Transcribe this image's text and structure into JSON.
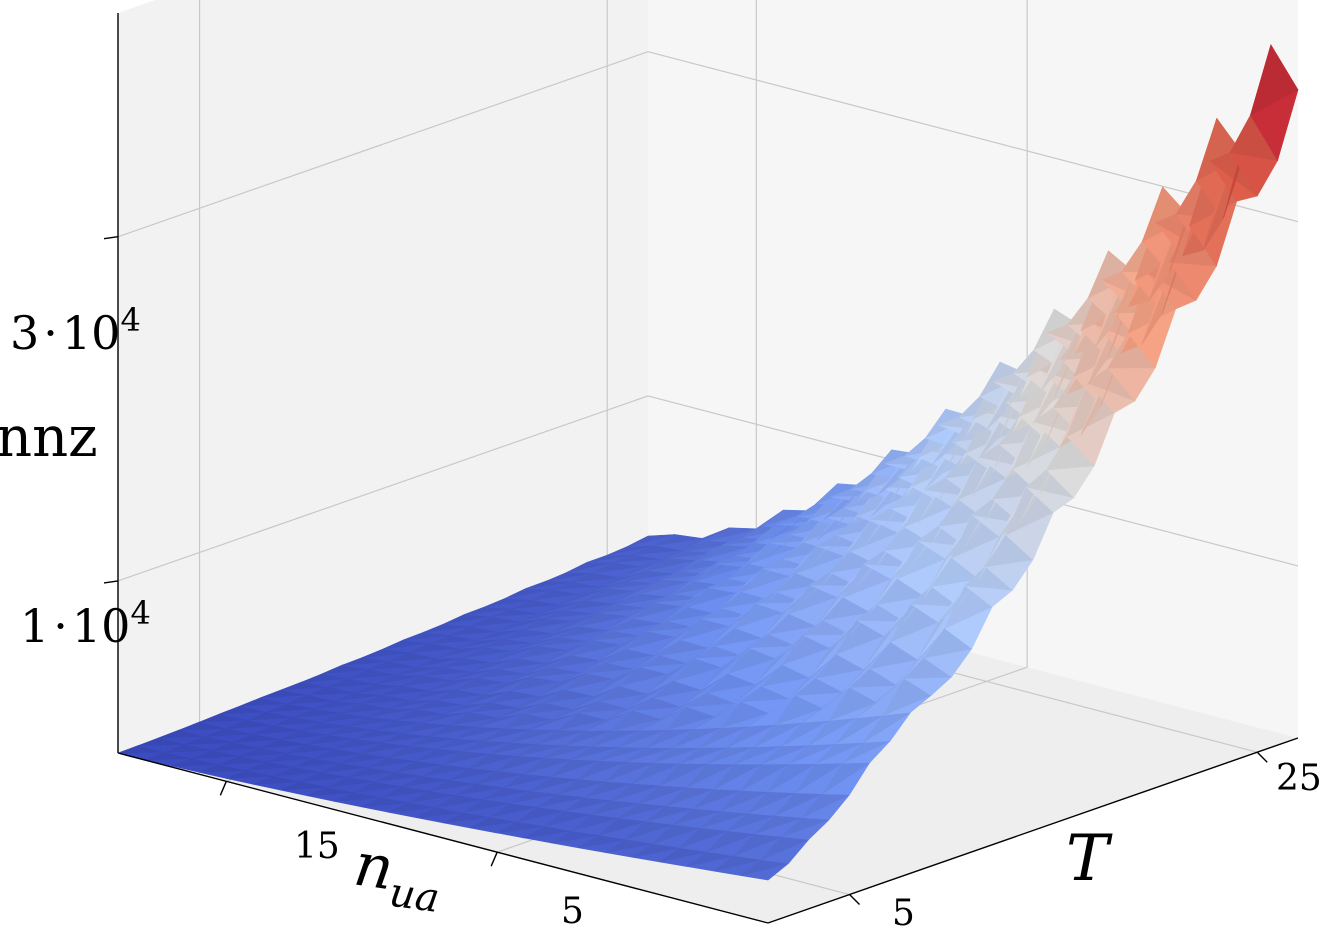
{
  "chart_data": {
    "type": "surface3d",
    "title": "",
    "colormap": "coolwarm",
    "colormap_stops": [
      "#3b4cc0",
      "#7396f5",
      "#b0cbfc",
      "#dddcdc",
      "#f6a385",
      "#dd5f4b",
      "#b40426"
    ],
    "axes": {
      "x": {
        "label": "n_ua",
        "label_main": "n",
        "label_sub": "ua",
        "ticks": [
          {
            "value": 5,
            "label": "5"
          },
          {
            "value": 15,
            "label": "15"
          }
        ],
        "range": [
          1,
          25
        ]
      },
      "y": {
        "label": "T",
        "ticks": [
          {
            "value": 5,
            "label": "5"
          },
          {
            "value": 25,
            "label": "25"
          }
        ],
        "range": [
          1,
          27
        ]
      },
      "z": {
        "label": "nnz",
        "ticks": [
          {
            "value": 10000,
            "mant": "1",
            "base": "10",
            "exp": "4"
          },
          {
            "value": 30000,
            "mant": "3",
            "base": "10",
            "exp": "4"
          }
        ],
        "range": [
          0,
          43000
        ]
      }
    },
    "grid": true,
    "surface_peaks": {
      "corner_low_nnz": 0,
      "high_nua_high_T_nnz": 40000,
      "low_nua_high_T_nnz": 38000
    }
  }
}
